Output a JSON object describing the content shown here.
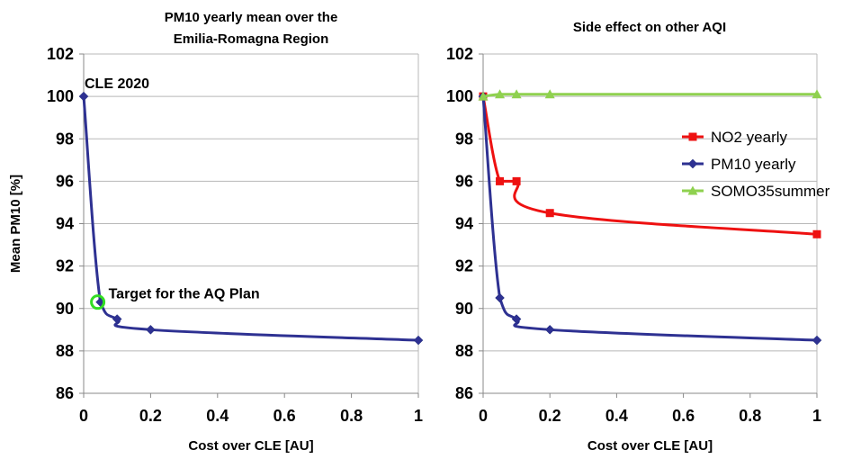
{
  "chart_data": [
    {
      "type": "line",
      "title_lines": [
        "PM10 yearly mean over the",
        "Emilia-Romagna Region"
      ],
      "xlabel": "Cost over CLE [AU]",
      "ylabel": "Mean PM10 [%]",
      "xlim": [
        0,
        1
      ],
      "ylim": [
        86,
        102
      ],
      "xticks": [
        "0",
        "0.2",
        "0.4",
        "0.6",
        "0.8",
        "1"
      ],
      "yticks": [
        "86",
        "88",
        "90",
        "92",
        "94",
        "96",
        "98",
        "100",
        "102"
      ],
      "grid": true,
      "series": [
        {
          "color": "#2e3192",
          "marker": "diamond",
          "x": [
            0,
            0.05,
            0.1,
            0.2,
            1
          ],
          "y": [
            100,
            90.3,
            89.5,
            89,
            88.5
          ]
        }
      ],
      "annotations": [
        {
          "text": "CLE 2020",
          "x": 0,
          "y": 100
        },
        {
          "text": "Target for the AQ Plan",
          "x": 0.05,
          "y": 90.3,
          "highlight_color": "#33dd22"
        }
      ]
    },
    {
      "type": "line",
      "title_lines": [
        "Side effect on other AQI"
      ],
      "xlabel": "Cost over CLE [AU]",
      "ylabel": "",
      "xlim": [
        0,
        1
      ],
      "ylim": [
        86,
        102
      ],
      "xticks": [
        "0",
        "0.2",
        "0.4",
        "0.6",
        "0.8",
        "1"
      ],
      "yticks": [
        "86",
        "88",
        "90",
        "92",
        "94",
        "96",
        "98",
        "100",
        "102"
      ],
      "grid": true,
      "legend_position": "right",
      "series": [
        {
          "name": "NO2 yearly",
          "color": "#ee1111",
          "marker": "square",
          "x": [
            0,
            0.05,
            0.1,
            0.2,
            1
          ],
          "y": [
            100,
            96,
            96,
            94.5,
            93.5
          ]
        },
        {
          "name": "PM10 yearly",
          "color": "#2e3192",
          "marker": "diamond",
          "x": [
            0,
            0.05,
            0.1,
            0.2,
            1
          ],
          "y": [
            100,
            90.5,
            89.5,
            89,
            88.5
          ]
        },
        {
          "name": "SOMO35summer",
          "color": "#8fd14f",
          "marker": "triangle",
          "x": [
            0,
            0.05,
            0.1,
            0.2,
            1
          ],
          "y": [
            100,
            100.1,
            100.1,
            100.1,
            100.1
          ]
        }
      ]
    }
  ]
}
